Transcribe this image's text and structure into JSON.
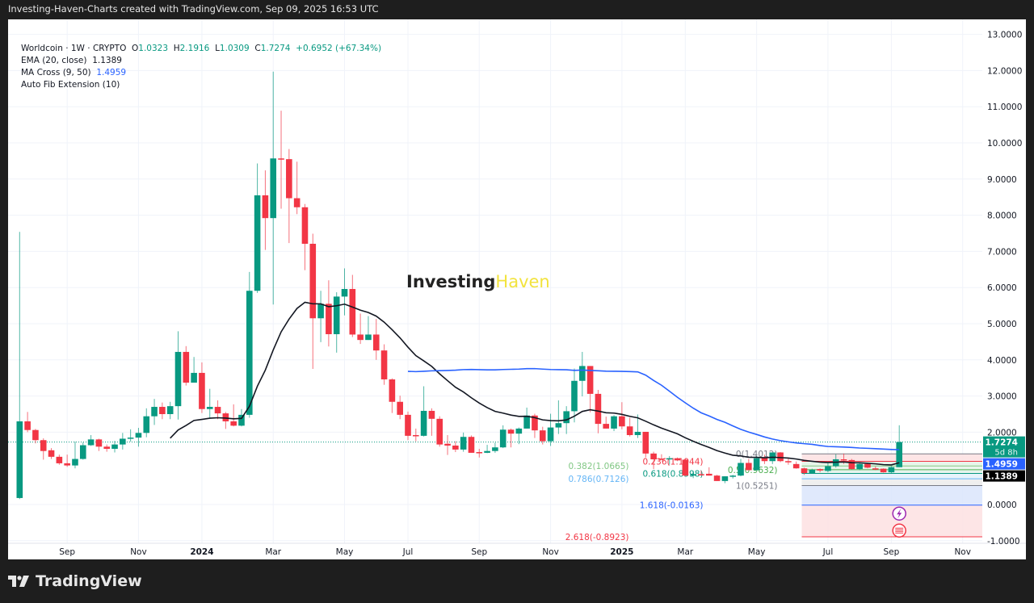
{
  "header": {
    "title": "Investing-Haven-Charts created with TradingView.com, Sep 09, 2025 16:53 UTC"
  },
  "legend": {
    "symbol": "Worldcoin · 1W · CRYPTO",
    "o_label": "O",
    "o": "1.0323",
    "h_label": "H",
    "h": "2.1916",
    "l_label": "L",
    "l": "1.0309",
    "c_label": "C",
    "c": "1.7274",
    "change": "+0.6952 (+67.34%)",
    "ema_label": "EMA (20, close)",
    "ema_value": "1.1389",
    "ma_label": "MA Cross (9, 50)",
    "ma_value": "1.4959",
    "fib_label": "Auto Fib Extension (10)"
  },
  "watermark": {
    "part1": "Investing",
    "part2": "Haven"
  },
  "footer": {
    "brand": "TradingView"
  },
  "colors": {
    "up": "#089981",
    "down": "#f23645",
    "ema": "#131722",
    "ma": "#2962ff"
  },
  "chart_data": {
    "type": "candlestick",
    "title": "Worldcoin · 1W · CRYPTO",
    "ylim": [
      -1,
      13
    ],
    "y_ticks": [
      "13.0000",
      "12.0000",
      "11.0000",
      "10.0000",
      "9.0000",
      "8.0000",
      "7.0000",
      "6.0000",
      "5.0000",
      "4.0000",
      "3.0000",
      "2.0000",
      "0.0000",
      "-1.0000"
    ],
    "y_tick_values": [
      13,
      12,
      11,
      10,
      9,
      8,
      7,
      6,
      5,
      4,
      3,
      2,
      0,
      -1
    ],
    "x_ticks": [
      {
        "label": "Sep",
        "week": 6
      },
      {
        "label": "Nov",
        "week": 15
      },
      {
        "label": "2024",
        "week": 23,
        "bold": true
      },
      {
        "label": "Mar",
        "week": 32
      },
      {
        "label": "May",
        "week": 41
      },
      {
        "label": "Jul",
        "week": 49
      },
      {
        "label": "Sep",
        "week": 58
      },
      {
        "label": "Nov",
        "week": 67
      },
      {
        "label": "2025",
        "week": 76,
        "bold": true
      },
      {
        "label": "Mar",
        "week": 84
      },
      {
        "label": "May",
        "week": 93
      },
      {
        "label": "Jul",
        "week": 102
      },
      {
        "label": "Sep",
        "week": 110
      },
      {
        "label": "Nov",
        "week": 119
      }
    ],
    "ohlc": [
      [
        0.18,
        7.54,
        0.15,
        2.3
      ],
      [
        2.3,
        2.56,
        2.0,
        2.06
      ],
      [
        2.06,
        2.09,
        1.69,
        1.78
      ],
      [
        1.78,
        1.83,
        1.24,
        1.48
      ],
      [
        1.5,
        1.56,
        1.26,
        1.32
      ],
      [
        1.32,
        1.38,
        1.1,
        1.14
      ],
      [
        1.14,
        1.38,
        1.04,
        1.08
      ],
      [
        1.08,
        1.74,
        1.0,
        1.26
      ],
      [
        1.26,
        1.72,
        1.24,
        1.64
      ],
      [
        1.64,
        1.92,
        1.62,
        1.8
      ],
      [
        1.8,
        1.82,
        1.48,
        1.6
      ],
      [
        1.6,
        1.66,
        1.46,
        1.54
      ],
      [
        1.54,
        1.76,
        1.44,
        1.66
      ],
      [
        1.66,
        1.98,
        1.52,
        1.82
      ],
      [
        1.82,
        2.08,
        1.74,
        1.85
      ],
      [
        1.85,
        2.12,
        1.6,
        1.98
      ],
      [
        1.98,
        2.66,
        1.86,
        2.44
      ],
      [
        2.44,
        2.92,
        2.2,
        2.7
      ],
      [
        2.7,
        2.82,
        2.36,
        2.5
      ],
      [
        2.5,
        2.84,
        2.36,
        2.72
      ],
      [
        2.72,
        4.79,
        2.35,
        4.22
      ],
      [
        4.22,
        4.38,
        3.29,
        3.37
      ],
      [
        3.37,
        4.08,
        3.37,
        3.64
      ],
      [
        3.64,
        3.93,
        2.53,
        2.64
      ],
      [
        2.64,
        3.2,
        2.4,
        2.7
      ],
      [
        2.7,
        2.88,
        2.36,
        2.52
      ],
      [
        2.52,
        2.56,
        2.09,
        2.3
      ],
      [
        2.3,
        2.77,
        2.16,
        2.18
      ],
      [
        2.18,
        2.64,
        2.16,
        2.48
      ],
      [
        2.48,
        6.43,
        2.4,
        5.91
      ],
      [
        5.91,
        9.43,
        5.85,
        8.55
      ],
      [
        8.55,
        9.24,
        7.04,
        7.92
      ],
      [
        7.92,
        11.97,
        5.53,
        9.57
      ],
      [
        9.57,
        10.89,
        8.18,
        9.55
      ],
      [
        9.55,
        9.83,
        7.23,
        8.47
      ],
      [
        8.47,
        9.48,
        8.03,
        8.22
      ],
      [
        8.22,
        8.31,
        6.48,
        7.21
      ],
      [
        7.21,
        7.49,
        3.75,
        5.15
      ],
      [
        5.15,
        5.91,
        4.49,
        5.55
      ],
      [
        5.55,
        6.2,
        4.37,
        4.71
      ],
      [
        4.71,
        5.87,
        4.2,
        5.75
      ],
      [
        5.75,
        6.53,
        5.23,
        5.96
      ],
      [
        5.96,
        6.35,
        4.63,
        4.7
      ],
      [
        4.7,
        5.28,
        4.44,
        4.55
      ],
      [
        4.55,
        5.21,
        4.55,
        4.7
      ],
      [
        4.7,
        5.13,
        4.0,
        4.26
      ],
      [
        4.26,
        4.43,
        3.31,
        3.46
      ],
      [
        3.46,
        3.49,
        2.53,
        2.84
      ],
      [
        2.84,
        3.01,
        2.36,
        2.48
      ],
      [
        2.48,
        2.57,
        1.78,
        1.9
      ],
      [
        1.92,
        2.1,
        1.75,
        1.9
      ],
      [
        1.9,
        3.27,
        1.88,
        2.59
      ],
      [
        2.59,
        2.66,
        1.9,
        2.37
      ],
      [
        2.37,
        2.44,
        1.6,
        1.66
      ],
      [
        1.68,
        1.92,
        1.37,
        1.63
      ],
      [
        1.63,
        1.75,
        1.45,
        1.52
      ],
      [
        1.52,
        1.99,
        1.46,
        1.87
      ],
      [
        1.87,
        1.91,
        1.43,
        1.43
      ],
      [
        1.45,
        1.54,
        1.3,
        1.42
      ],
      [
        1.43,
        1.65,
        1.42,
        1.48
      ],
      [
        1.48,
        1.71,
        1.43,
        1.58
      ],
      [
        1.58,
        2.19,
        1.56,
        2.07
      ],
      [
        2.07,
        2.1,
        1.58,
        1.96
      ],
      [
        1.96,
        2.13,
        1.67,
        2.1
      ],
      [
        2.1,
        2.68,
        2.1,
        2.46
      ],
      [
        2.46,
        2.51,
        1.84,
        2.05
      ],
      [
        2.05,
        2.15,
        1.66,
        1.75
      ],
      [
        1.75,
        2.51,
        1.62,
        2.13
      ],
      [
        2.13,
        2.88,
        1.95,
        2.25
      ],
      [
        2.25,
        2.72,
        1.95,
        2.58
      ],
      [
        2.58,
        3.76,
        2.27,
        3.42
      ],
      [
        3.42,
        4.22,
        2.99,
        3.83
      ],
      [
        3.83,
        3.83,
        2.55,
        3.06
      ],
      [
        3.06,
        3.17,
        1.97,
        2.23
      ],
      [
        2.23,
        2.43,
        2.1,
        2.1
      ],
      [
        2.1,
        2.47,
        2.03,
        2.44
      ],
      [
        2.44,
        2.83,
        2.08,
        2.16
      ],
      [
        2.16,
        2.4,
        1.88,
        1.92
      ],
      [
        1.92,
        2.49,
        1.84,
        2.01
      ],
      [
        2.01,
        2.01,
        1.3,
        1.41
      ],
      [
        1.41,
        1.46,
        0.98,
        1.25
      ],
      [
        1.27,
        1.39,
        1.23,
        1.25
      ],
      [
        1.25,
        1.34,
        1.1,
        1.28
      ],
      [
        1.28,
        1.3,
        1.2,
        1.22
      ],
      [
        1.24,
        1.26,
        0.78,
        0.8
      ],
      [
        0.8,
        0.93,
        0.73,
        0.84
      ],
      [
        0.84,
        0.94,
        0.8,
        0.82
      ],
      [
        0.85,
        1.03,
        0.8,
        0.8
      ],
      [
        0.8,
        0.82,
        0.65,
        0.65
      ],
      [
        0.65,
        0.78,
        0.59,
        0.78
      ],
      [
        0.78,
        0.82,
        0.72,
        0.8
      ],
      [
        0.8,
        1.26,
        0.78,
        1.15
      ],
      [
        1.15,
        1.26,
        0.95,
        0.95
      ],
      [
        0.95,
        1.34,
        0.95,
        1.28
      ],
      [
        1.3,
        1.38,
        1.12,
        1.2
      ],
      [
        1.2,
        1.44,
        1.12,
        1.44
      ],
      [
        1.44,
        1.45,
        1.17,
        1.2
      ],
      [
        1.2,
        1.27,
        1.1,
        1.17
      ],
      [
        1.12,
        1.19,
        0.99,
        1.0
      ],
      [
        1.0,
        1.02,
        0.82,
        0.87
      ],
      [
        0.87,
        0.99,
        0.85,
        0.96
      ],
      [
        0.98,
        1.0,
        0.89,
        0.94
      ],
      [
        0.93,
        1.15,
        0.89,
        1.06
      ],
      [
        1.06,
        1.39,
        1.02,
        1.25
      ],
      [
        1.25,
        1.41,
        1.12,
        1.23
      ],
      [
        1.23,
        1.26,
        0.97,
        0.98
      ],
      [
        0.98,
        1.14,
        0.95,
        1.12
      ],
      [
        1.12,
        1.15,
        1.0,
        1.02
      ],
      [
        1.0,
        1.05,
        0.95,
        0.97
      ],
      [
        0.99,
        1.0,
        0.88,
        0.89
      ],
      [
        0.89,
        1.06,
        0.85,
        1.0323
      ],
      [
        1.0323,
        2.1916,
        1.0309,
        1.7274
      ]
    ],
    "indicators": {
      "ema_period": 20,
      "ma_period": 50
    },
    "fib": {
      "start_week": 99,
      "levels": [
        {
          "ratio": "0",
          "price": 1.4012,
          "label": "0(1.4012)",
          "color": "#787b86"
        },
        {
          "ratio": "0.236",
          "price": 1.1944,
          "label": "0.236(1.1944)",
          "color": "#f23645"
        },
        {
          "ratio": "0.382",
          "price": 1.0665,
          "label": "0.382(1.0665)",
          "color": "#81c784"
        },
        {
          "ratio": "0.5",
          "price": 0.9632,
          "label": "0.5(0.9632)",
          "color": "#4caf50"
        },
        {
          "ratio": "0.618",
          "price": 0.8598,
          "label": "0.618(0.8598)",
          "color": "#089981"
        },
        {
          "ratio": "0.786",
          "price": 0.7126,
          "label": "0.786(0.7126)",
          "color": "#64b5f6"
        },
        {
          "ratio": "1",
          "price": 0.5251,
          "label": "1(0.5251)",
          "color": "#787b86"
        },
        {
          "ratio": "1.618",
          "price": -0.0163,
          "label": "1.618(-0.0163)",
          "color": "#2962ff"
        },
        {
          "ratio": "2.618",
          "price": -0.8923,
          "label": "2.618(-0.8923)",
          "color": "#f23645"
        }
      ]
    },
    "price_tags": [
      {
        "value": 1.7274,
        "label": "1.7274",
        "sub": "5d 8h",
        "color": "#089981"
      },
      {
        "value": 1.4959,
        "label": "1.4959",
        "color": "#2962ff"
      },
      {
        "value": 1.1389,
        "label": "1.1389",
        "color": "#000000"
      }
    ],
    "last_price": 1.7274
  }
}
